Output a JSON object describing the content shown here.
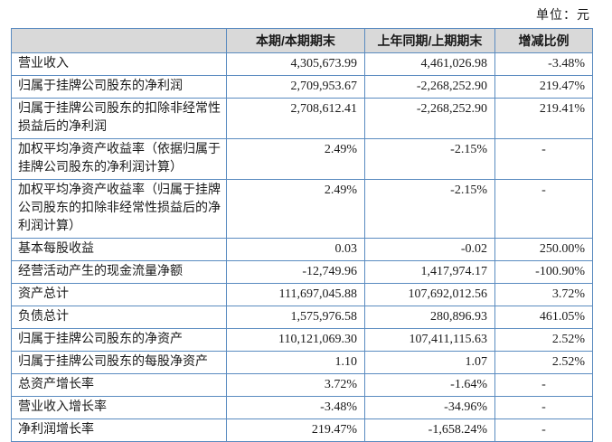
{
  "page": {
    "unit_label": "单位：元"
  },
  "table": {
    "headers": [
      "",
      "本期/本期期末",
      "上年同期/上期期末",
      "增减比例"
    ],
    "rows": [
      {
        "label": "营业收入",
        "current": "4,305,673.99",
        "prior": "4,461,026.98",
        "change": "-3.48%"
      },
      {
        "label": "归属于挂牌公司股东的净利润",
        "current": "2,709,953.67",
        "prior": "-2,268,252.90",
        "change": "219.47%"
      },
      {
        "label": "归属于挂牌公司股东的扣除非经常性损益后的净利润",
        "current": "2,708,612.41",
        "prior": "-2,268,252.90",
        "change": "219.41%"
      },
      {
        "label": "加权平均净资产收益率（依据归属于挂牌公司股东的净利润计算）",
        "current": "2.49%",
        "prior": "-2.15%",
        "change": "-"
      },
      {
        "label": "加权平均净资产收益率（归属于挂牌公司股东的扣除非经常性损益后的净利润计算）",
        "current": "2.49%",
        "prior": "-2.15%",
        "change": "-"
      },
      {
        "label": "基本每股收益",
        "current": "0.03",
        "prior": "-0.02",
        "change": "250.00%"
      },
      {
        "label": "经营活动产生的现金流量净额",
        "current": "-12,749.96",
        "prior": "1,417,974.17",
        "change": "-100.90%"
      },
      {
        "label": "资产总计",
        "current": "111,697,045.88",
        "prior": "107,692,012.56",
        "change": "3.72%"
      },
      {
        "label": "负债总计",
        "current": "1,575,976.58",
        "prior": "280,896.93",
        "change": "461.05%"
      },
      {
        "label": "归属于挂牌公司股东的净资产",
        "current": "110,121,069.30",
        "prior": "107,411,115.63",
        "change": "2.52%"
      },
      {
        "label": "归属于挂牌公司股东的每股净资产",
        "current": "1.10",
        "prior": "1.07",
        "change": "2.52%"
      },
      {
        "label": "总资产增长率",
        "current": "3.72%",
        "prior": "-1.64%",
        "change": "-"
      },
      {
        "label": "营业收入增长率",
        "current": "-3.48%",
        "prior": "-34.96%",
        "change": "-"
      },
      {
        "label": "净利润增长率",
        "current": "219.47%",
        "prior": "-1,658.24%",
        "change": "-"
      }
    ]
  },
  "colors": {
    "border": "#5a8bc0",
    "header_bg": "#d9d9d9",
    "text": "#1a1a1a"
  }
}
